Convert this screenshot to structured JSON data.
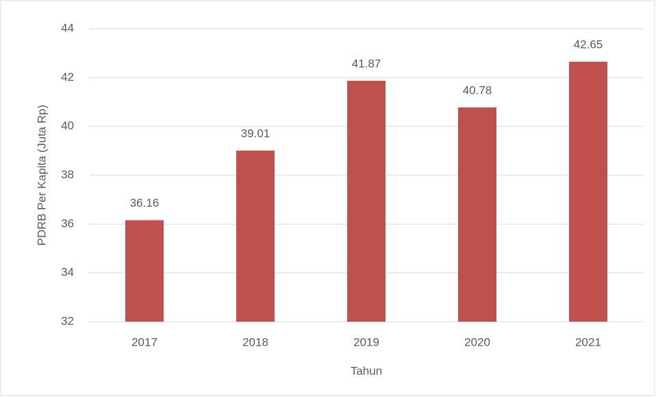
{
  "chart_data": {
    "type": "bar",
    "y_label": "PDRB Per Kapita (Juta Rp)",
    "x_label": "Tahun",
    "categories": [
      "2017",
      "2018",
      "2019",
      "2020",
      "2021"
    ],
    "values": [
      36.16,
      39.01,
      41.87,
      40.78,
      42.65
    ],
    "color": "#c0504d",
    "ylim": [
      32,
      44
    ],
    "yticks": [
      32,
      34,
      36,
      38,
      40,
      42,
      44
    ],
    "grid": true
  }
}
